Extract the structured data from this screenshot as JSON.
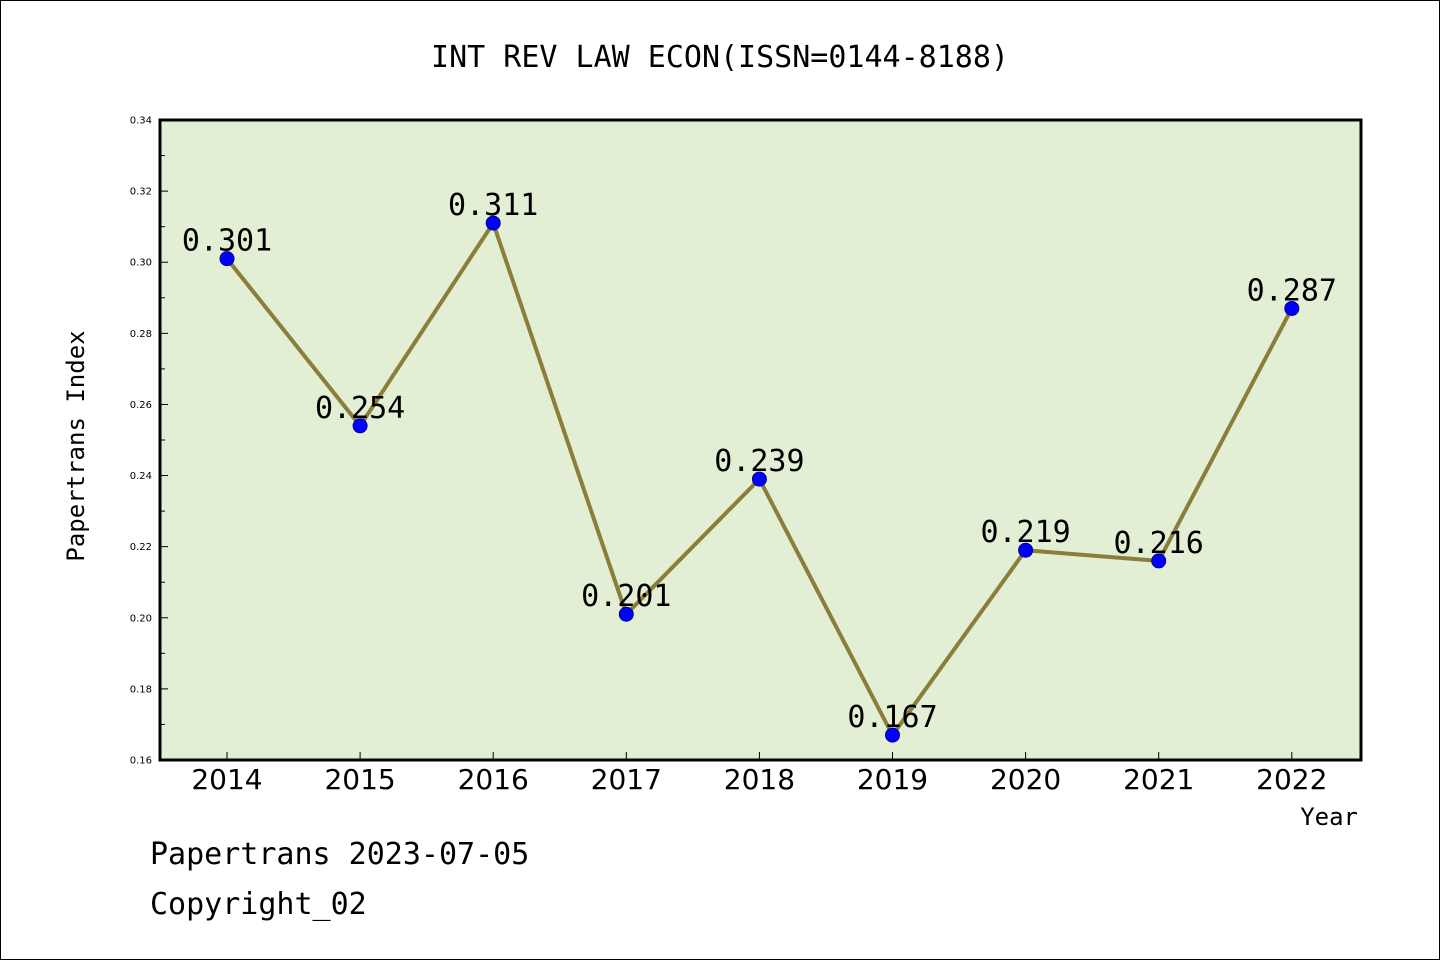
{
  "chart_data": {
    "type": "line",
    "title": "INT REV LAW ECON(ISSN=0144-8188)",
    "xlabel": "Year",
    "ylabel": "Papertrans Index",
    "categories": [
      "2014",
      "2015",
      "2016",
      "2017",
      "2018",
      "2019",
      "2020",
      "2021",
      "2022"
    ],
    "values": [
      0.301,
      0.254,
      0.311,
      0.201,
      0.239,
      0.167,
      0.219,
      0.216,
      0.287
    ],
    "data_labels": [
      "0.301",
      "0.254",
      "0.311",
      "0.201",
      "0.239",
      "0.167",
      "0.219",
      "0.216",
      "0.287"
    ],
    "ylim": [
      0.16,
      0.34
    ],
    "yticks": [
      "0.16",
      "0.18",
      "0.20",
      "0.22",
      "0.24",
      "0.26",
      "0.28",
      "0.30",
      "0.32",
      "0.34"
    ],
    "grid": false,
    "colors": {
      "line": "#8B7D3A",
      "marker": "#0000FF",
      "plot_background": "#E2EFD5"
    }
  },
  "footer": {
    "line1": "Papertrans 2023-07-05",
    "line2": "Copyright_02"
  }
}
